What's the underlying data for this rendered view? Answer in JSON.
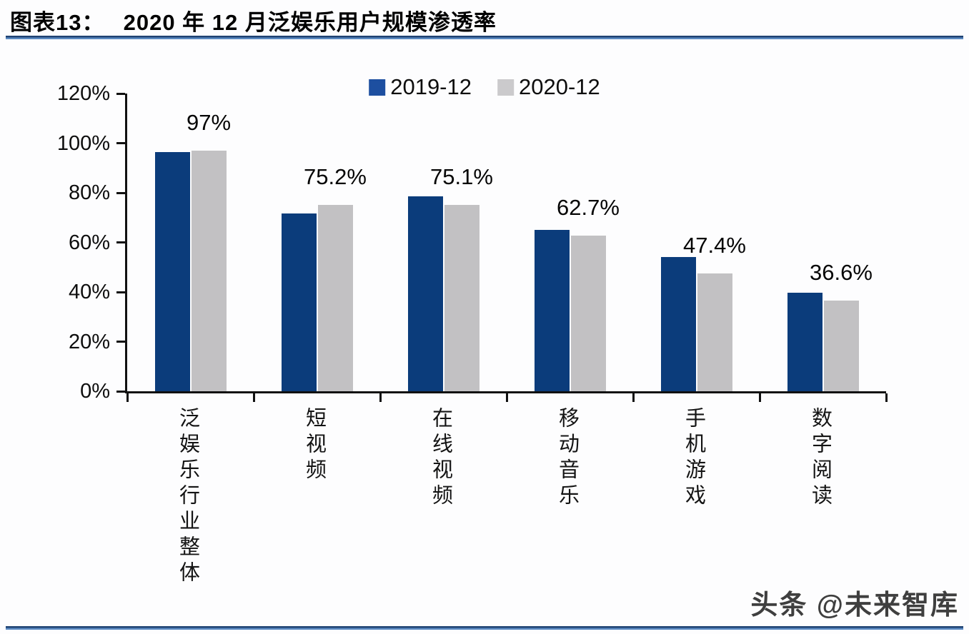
{
  "figure": {
    "title": "图表13：　 2020 年 12 月泛娱乐用户规模渗透率"
  },
  "chart_data": {
    "type": "bar",
    "title": "2020 年 12 月泛娱乐用户规模渗透率",
    "categories": [
      "泛娱乐行业整体",
      "短视频",
      "在线视频",
      "移动音乐",
      "手机游戏",
      "数字阅读"
    ],
    "series": [
      {
        "name": "2019-12",
        "color": "#0b3c7b",
        "legend_color": "#1d4fa0",
        "values": [
          96.5,
          71.8,
          78.5,
          65.0,
          54.0,
          39.8
        ]
      },
      {
        "name": "2020-12",
        "color": "#c2c1c3",
        "legend_color": "#cbcacc",
        "values": [
          97.0,
          75.2,
          75.1,
          62.7,
          47.4,
          36.6
        ]
      }
    ],
    "data_labels": [
      "97%",
      "75.2%",
      "75.1%",
      "62.7%",
      "47.4%",
      "36.6%"
    ],
    "data_labels_series": "2020-12",
    "xlabel": "",
    "ylabel": "",
    "ylim": [
      0,
      120
    ],
    "ytick_step": 20,
    "ytick_labels": [
      "0%",
      "20%",
      "40%",
      "60%",
      "80%",
      "100%",
      "120%"
    ],
    "legend_position": "top-center",
    "grid": false,
    "bar_orientation": "vertical",
    "category_label_orientation": "vertical-upright"
  },
  "footer": {
    "watermark": "头条 @未来智库"
  },
  "colors": {
    "axis": "#111111",
    "divider_dark": "#1f4272",
    "divider_light": "#5b8ac2",
    "title_text": "#000000",
    "watermark_text": "#3f3f3f",
    "background": "#fdfdfe"
  }
}
